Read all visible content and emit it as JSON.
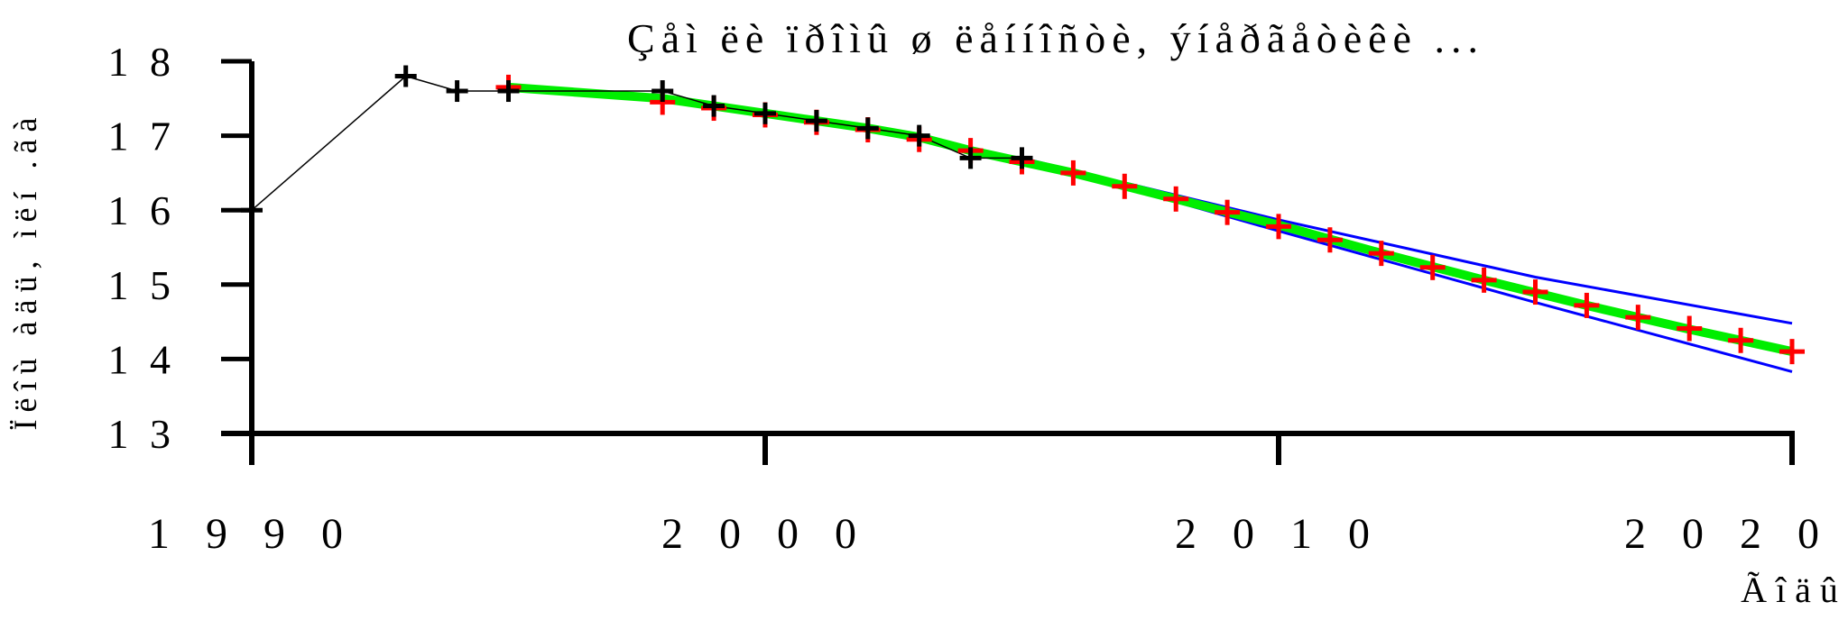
{
  "chart_data": {
    "type": "line",
    "title": "Çåì ëè ïðîìû ø ëåííîñòè, ýíåðãåòèêè ...",
    "xlabel": "Ãîäû",
    "ylabel": "Ïëîù àäü, ìëí .ãà",
    "xlim": [
      1990,
      2020
    ],
    "ylim": [
      13,
      18
    ],
    "x_ticks": [
      1990,
      2000,
      2010,
      2020
    ],
    "y_ticks": [
      13,
      14,
      15,
      16,
      17,
      18
    ],
    "x_tick_labels": [
      "1 9 9 0",
      "2 0 0 0",
      "2 0 1 0",
      "2 0 2 0"
    ],
    "y_tick_labels": [
      "1 3",
      "1 4",
      "1 5",
      "1 6",
      "1 7",
      "1 8"
    ],
    "grid": false,
    "colors": {
      "observed": "#000000",
      "forecast": "#ff0000",
      "trend": "#00ee00",
      "bounds": "#0000ff"
    },
    "series": [
      {
        "key": "observed",
        "style": "thin-line-plus-markers",
        "x": [
          1990,
          1993,
          1994,
          1995,
          1998,
          1999,
          2000,
          2001,
          2002,
          2003,
          2004,
          2005
        ],
        "y": [
          16.0,
          17.8,
          17.6,
          17.6,
          17.6,
          17.4,
          17.3,
          17.2,
          17.1,
          17.0,
          16.7,
          16.7
        ]
      },
      {
        "key": "trend",
        "style": "thick-line",
        "x": [
          1995,
          1998,
          2000,
          2002,
          2003,
          2004,
          2006,
          2008,
          2010,
          2012,
          2014,
          2016,
          2018,
          2020
        ],
        "y": [
          17.65,
          17.5,
          17.3,
          17.1,
          16.98,
          16.8,
          16.5,
          16.15,
          15.8,
          15.42,
          15.06,
          14.72,
          14.4,
          14.1
        ]
      },
      {
        "key": "forecast",
        "style": "plus-markers",
        "x": [
          1995,
          1998,
          1999,
          2000,
          2001,
          2002,
          2003,
          2004,
          2005,
          2006,
          2007,
          2008,
          2009,
          2010,
          2011,
          2012,
          2013,
          2014,
          2015,
          2016,
          2017,
          2018,
          2019,
          2020
        ],
        "y": [
          17.65,
          17.45,
          17.37,
          17.28,
          17.18,
          17.08,
          16.95,
          16.8,
          16.65,
          16.5,
          16.32,
          16.15,
          15.97,
          15.78,
          15.6,
          15.42,
          15.23,
          15.06,
          14.9,
          14.72,
          14.56,
          14.41,
          14.25,
          14.1
        ]
      },
      {
        "key": "upper_bound",
        "style": "thin-line",
        "x": [
          2005,
          2010,
          2015,
          2020
        ],
        "y": [
          16.7,
          15.87,
          15.1,
          14.48
        ]
      },
      {
        "key": "lower_bound",
        "style": "thin-line",
        "x": [
          2005,
          2010,
          2015,
          2020
        ],
        "y": [
          16.7,
          15.72,
          14.76,
          13.83
        ]
      }
    ]
  }
}
